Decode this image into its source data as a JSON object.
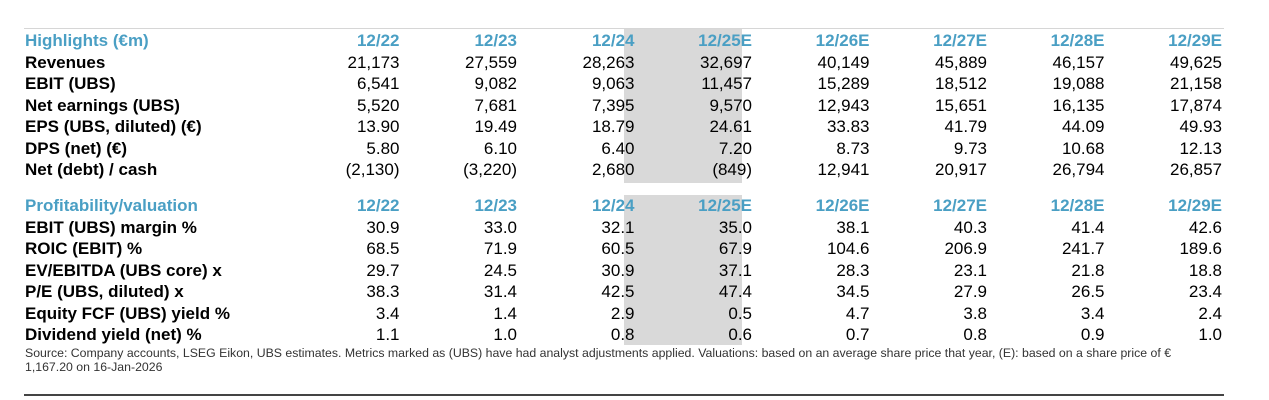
{
  "highlights": {
    "title": "Highlights (€m)",
    "periods": [
      "12/22",
      "12/23",
      "12/24",
      "12/25E",
      "12/26E",
      "12/27E",
      "12/28E",
      "12/29E"
    ],
    "rows": [
      {
        "label": "Revenues",
        "values": [
          "21,173",
          "27,559",
          "28,263",
          "32,697",
          "40,149",
          "45,889",
          "46,157",
          "49,625"
        ]
      },
      {
        "label": "EBIT (UBS)",
        "values": [
          "6,541",
          "9,082",
          "9,063",
          "11,457",
          "15,289",
          "18,512",
          "19,088",
          "21,158"
        ]
      },
      {
        "label": "Net earnings (UBS)",
        "values": [
          "5,520",
          "7,681",
          "7,395",
          "9,570",
          "12,943",
          "15,651",
          "16,135",
          "17,874"
        ]
      },
      {
        "label": "EPS (UBS, diluted) (€)",
        "values": [
          "13.90",
          "19.49",
          "18.79",
          "24.61",
          "33.83",
          "41.79",
          "44.09",
          "49.93"
        ]
      },
      {
        "label": "DPS (net) (€)",
        "values": [
          "5.80",
          "6.10",
          "6.40",
          "7.20",
          "8.73",
          "9.73",
          "10.68",
          "12.13"
        ]
      },
      {
        "label": "Net (debt) / cash",
        "values": [
          "(2,130)",
          "(3,220)",
          "2,680",
          "(849)",
          "12,941",
          "20,917",
          "26,794",
          "26,857"
        ]
      }
    ]
  },
  "profitability": {
    "title": "Profitability/valuation",
    "periods": [
      "12/22",
      "12/23",
      "12/24",
      "12/25E",
      "12/26E",
      "12/27E",
      "12/28E",
      "12/29E"
    ],
    "rows": [
      {
        "label": "EBIT (UBS) margin %",
        "values": [
          "30.9",
          "33.0",
          "32.1",
          "35.0",
          "38.1",
          "40.3",
          "41.4",
          "42.6"
        ]
      },
      {
        "label": "ROIC (EBIT) %",
        "values": [
          "68.5",
          "71.9",
          "60.5",
          "67.9",
          "104.6",
          "206.9",
          "241.7",
          "189.6"
        ]
      },
      {
        "label": "EV/EBITDA (UBS core) x",
        "values": [
          "29.7",
          "24.5",
          "30.9",
          "37.1",
          "28.3",
          "23.1",
          "21.8",
          "18.8"
        ]
      },
      {
        "label": "P/E (UBS, diluted) x",
        "values": [
          "38.3",
          "31.4",
          "42.5",
          "47.4",
          "34.5",
          "27.9",
          "26.5",
          "23.4"
        ]
      },
      {
        "label": "Equity FCF (UBS) yield %",
        "values": [
          "3.4",
          "1.4",
          "2.9",
          "0.5",
          "4.7",
          "3.8",
          "3.4",
          "2.4"
        ]
      },
      {
        "label": "Dividend yield (net) %",
        "values": [
          "1.1",
          "1.0",
          "0.8",
          "0.6",
          "0.7",
          "0.8",
          "0.9",
          "1.0"
        ]
      }
    ]
  },
  "source_note": "Source: Company accounts, LSEG Eikon, UBS estimates. Metrics marked as (UBS) have had analyst adjustments applied. Valuations: based on an average share price that year, (E): based on a share price of € 1,167.20 on 16-Jan-2026",
  "colors": {
    "header_text": "#4a9fc4",
    "highlight_column": "#d9d9d9"
  }
}
